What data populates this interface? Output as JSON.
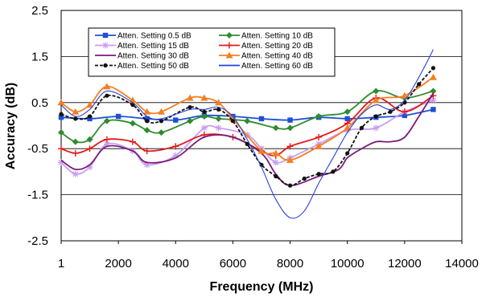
{
  "chart_data": {
    "type": "line",
    "title": "",
    "xlabel": "Frequency (MHz)",
    "ylabel": "Accuracy (dB)",
    "xlim": [
      1,
      14000
    ],
    "ylim": [
      -2.5,
      2.5
    ],
    "x_ticks": [
      "1",
      "2000",
      "4000",
      "6000",
      "8000",
      "10000",
      "12000",
      "14000"
    ],
    "y_ticks": [
      "2.5",
      "1.5",
      "0.5",
      "-0.5",
      "-1.5",
      "-2.5"
    ],
    "grid": "horizontal",
    "legend_position": "top",
    "series": [
      {
        "name": "Atten. Setting 0.5 dB",
        "color": "#1f4fd6",
        "marker": "square",
        "x": [
          1,
          1000,
          2000,
          3000,
          4000,
          5000,
          6000,
          7000,
          8000,
          9000,
          10000,
          11000,
          12000,
          13000
        ],
        "y": [
          0.18,
          0.15,
          0.2,
          0.15,
          0.12,
          0.22,
          0.2,
          0.15,
          0.12,
          0.18,
          0.15,
          0.18,
          0.22,
          0.35
        ]
      },
      {
        "name": "Atten. Setting 10 dB",
        "color": "#2e8b2e",
        "marker": "diamond",
        "x": [
          1,
          500,
          1000,
          1600,
          2500,
          3000,
          3500,
          4500,
          5000,
          5500,
          6500,
          7500,
          8000,
          9000,
          10000,
          11000,
          12000,
          13000
        ],
        "y": [
          -0.15,
          -0.35,
          -0.3,
          0.1,
          0.05,
          -0.1,
          -0.15,
          0.1,
          0.2,
          0.15,
          0.1,
          -0.05,
          -0.05,
          0.2,
          0.3,
          0.75,
          0.6,
          0.75
        ]
      },
      {
        "name": "Atten. Setting 15 dB",
        "color": "#c79ef0",
        "marker": "asterisk",
        "x": [
          1,
          500,
          1000,
          1600,
          2500,
          3000,
          4000,
          5000,
          5500,
          6500,
          7000,
          7500,
          8000,
          9000,
          10000,
          11000,
          12000,
          13000
        ],
        "y": [
          -0.8,
          -1.05,
          -0.9,
          -0.4,
          -0.55,
          -0.85,
          -0.65,
          -0.05,
          -0.05,
          -0.2,
          -0.5,
          -0.8,
          -0.7,
          -0.4,
          -0.1,
          -0.05,
          0.3,
          0.55
        ]
      },
      {
        "name": "Atten. Setting 20 dB",
        "color": "#e31a1a",
        "marker": "plus",
        "x": [
          1,
          500,
          1000,
          1600,
          2500,
          3000,
          4000,
          5000,
          6000,
          7000,
          7500,
          8000,
          9000,
          10000,
          11000,
          12000,
          13000
        ],
        "y": [
          -0.5,
          -0.6,
          -0.5,
          -0.3,
          -0.35,
          -0.55,
          -0.45,
          -0.2,
          -0.25,
          -0.55,
          -0.65,
          -0.45,
          -0.25,
          0.05,
          0.6,
          0.3,
          0.65
        ]
      },
      {
        "name": "Atten. Setting 30 dB",
        "color": "#7a1a7a",
        "marker": "none",
        "x": [
          1,
          500,
          1000,
          1600,
          2500,
          3000,
          4000,
          5000,
          6000,
          7000,
          7500,
          8000,
          9000,
          9700,
          10000,
          10500,
          11000,
          11500,
          12000,
          12500,
          13000
        ],
        "y": [
          -0.75,
          -0.95,
          -0.85,
          -0.45,
          -0.55,
          -0.8,
          -0.7,
          -0.25,
          -0.25,
          -0.6,
          -1.05,
          -1.3,
          -1.1,
          -0.95,
          -0.7,
          -0.5,
          -0.35,
          -0.35,
          -0.25,
          0.2,
          0.7
        ]
      },
      {
        "name": "Atten. Setting 40 dB",
        "color": "#f57f20",
        "marker": "triangle",
        "x": [
          1,
          500,
          1000,
          1600,
          2500,
          3000,
          3500,
          4500,
          5000,
          5500,
          6000,
          7000,
          7500,
          8000,
          9000,
          10000,
          11000,
          12000,
          13000
        ],
        "y": [
          0.5,
          0.3,
          0.45,
          0.85,
          0.55,
          0.3,
          0.3,
          0.6,
          0.6,
          0.5,
          0.15,
          -0.55,
          -0.6,
          -0.75,
          -0.45,
          -0.05,
          0.55,
          0.65,
          1.05
        ]
      },
      {
        "name": "Atten. Setting 50 dB",
        "color": "#111111",
        "marker": "circle",
        "x": [
          1,
          500,
          1000,
          1600,
          2500,
          3000,
          3500,
          4500,
          5000,
          5500,
          6000,
          6500,
          7000,
          7500,
          8000,
          8500,
          9000,
          9500,
          10000,
          10500,
          11000,
          11500,
          12000,
          12500,
          13000
        ],
        "y": [
          0.25,
          0.15,
          0.2,
          0.65,
          0.45,
          0.1,
          0.1,
          0.4,
          0.3,
          0.35,
          0.1,
          -0.4,
          -0.85,
          -1.1,
          -1.3,
          -1.15,
          -1.05,
          -1.0,
          -0.6,
          -0.05,
          0.2,
          0.3,
          0.5,
          0.9,
          1.25
        ]
      },
      {
        "name": "Atten. Setting 60 dB",
        "color": "#2a3fd8",
        "marker": "none",
        "x": [
          1,
          500,
          1000,
          1600,
          2500,
          3000,
          3500,
          4500,
          5000,
          5500,
          6000,
          6500,
          7000,
          7500,
          8000,
          8500,
          9000,
          9500,
          10000,
          10500,
          11000,
          11500,
          12000,
          12500,
          13000
        ],
        "y": [
          0.45,
          0.2,
          0.35,
          0.75,
          0.5,
          0.2,
          0.15,
          0.35,
          0.35,
          0.4,
          0.2,
          -0.3,
          -0.9,
          -1.6,
          -2.0,
          -1.85,
          -1.25,
          -0.7,
          -0.15,
          0.25,
          0.45,
          0.35,
          0.55,
          1.05,
          1.65
        ]
      }
    ]
  }
}
